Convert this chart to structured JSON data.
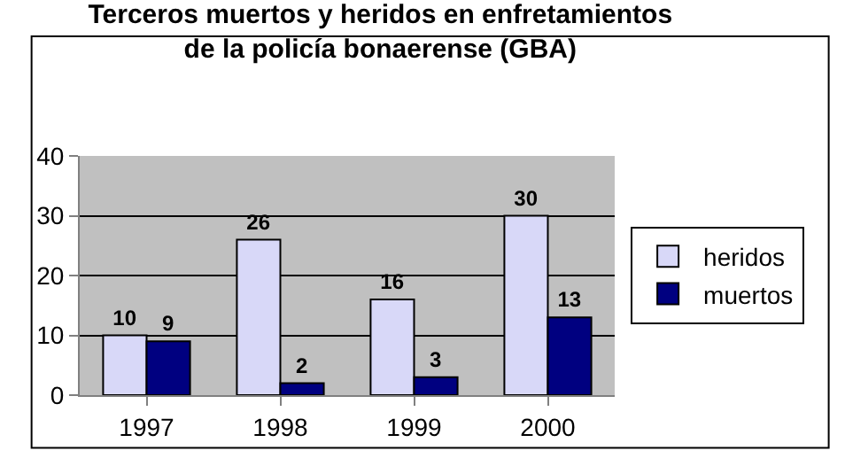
{
  "chart_data": {
    "type": "bar",
    "title": "Terceros muertos y heridos en enfretamientos\nde la policía bonaerense (GBA)",
    "categories": [
      "1997",
      "1998",
      "1999",
      "2000"
    ],
    "series": [
      {
        "name": "heridos",
        "color": "#d8d8f8",
        "values": [
          10,
          26,
          16,
          30
        ]
      },
      {
        "name": "muertos",
        "color": "#000080",
        "values": [
          9,
          2,
          3,
          13
        ]
      }
    ],
    "ylim": [
      0,
      40
    ],
    "yticks": [
      0,
      10,
      20,
      30,
      40
    ],
    "grid": "y",
    "legend": "right",
    "data_labels": true
  }
}
